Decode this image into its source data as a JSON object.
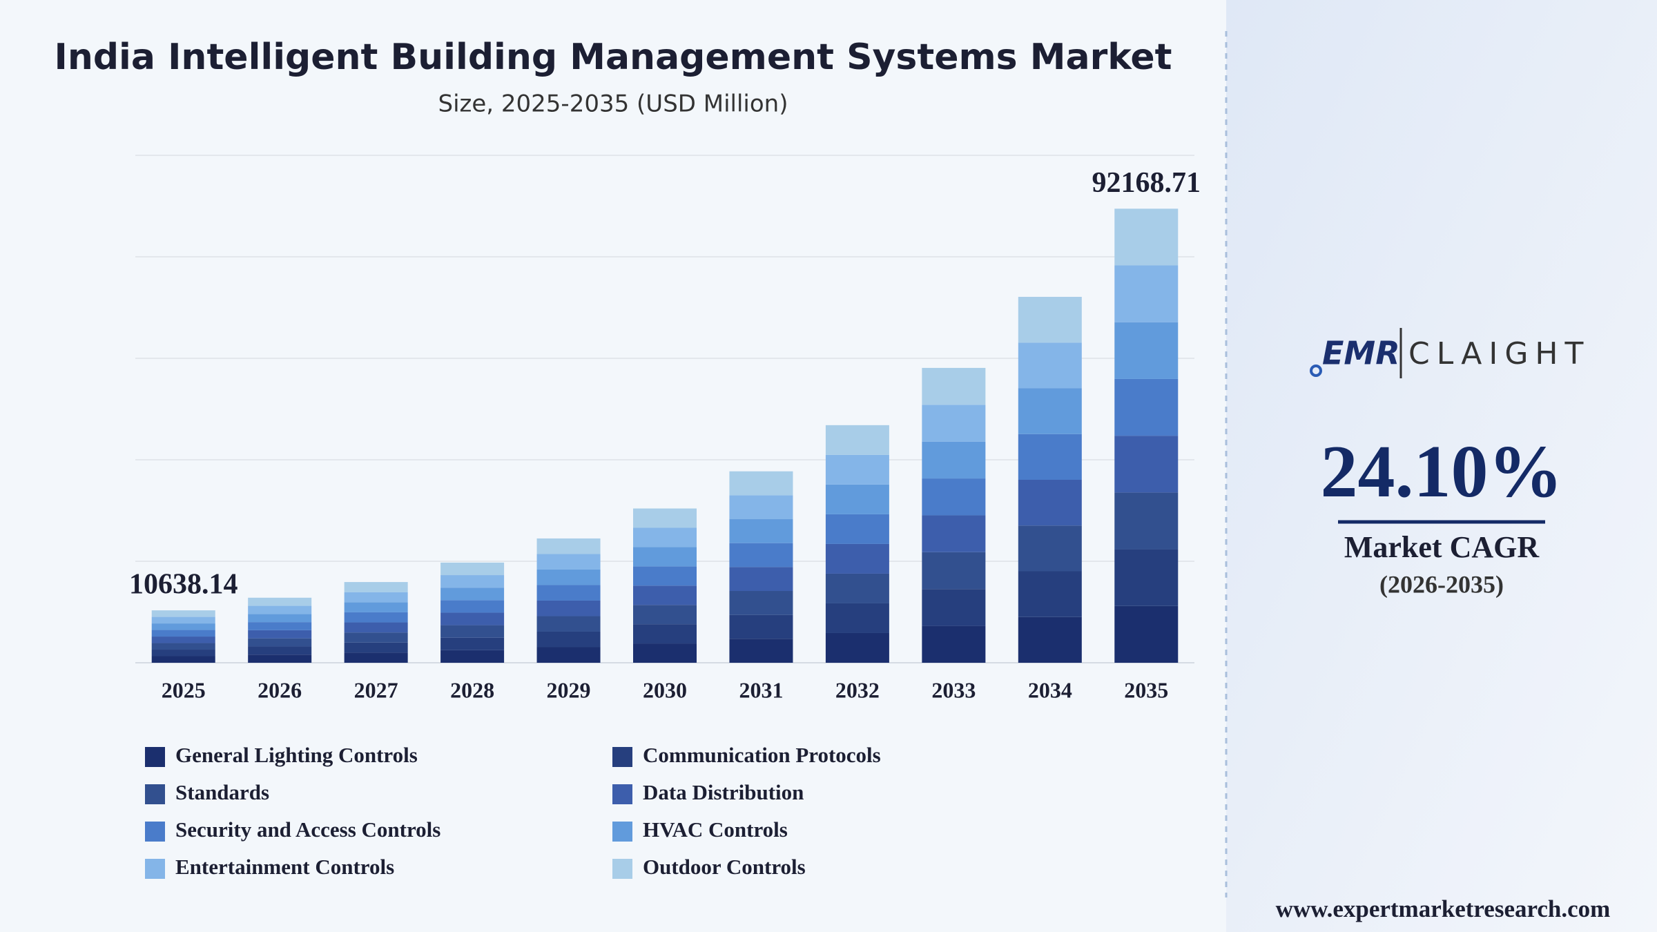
{
  "chart_data": {
    "type": "stacked_bar",
    "title": "India Intelligent Building Management Systems Market",
    "subtitle": "Size, 2025-2035 (USD Million)",
    "categories": [
      "2025",
      "2026",
      "2027",
      "2028",
      "2029",
      "2030",
      "2031",
      "2032",
      "2033",
      "2034",
      "2035"
    ],
    "series": [
      {
        "name": "General Lighting Controls",
        "color": "#1b2f6e",
        "values": [
          1329.8,
          1650.3,
          2048,
          2541.6,
          3154.1,
          3914.3,
          4857.6,
          6028.4,
          7481.3,
          9284.3,
          11521.1
        ]
      },
      {
        "name": "Communication Protocols",
        "color": "#263f7e",
        "values": [
          1329.8,
          1650.3,
          2048,
          2541.6,
          3154.1,
          3914.3,
          4857.6,
          6028.4,
          7481.3,
          9284.3,
          11521.1
        ]
      },
      {
        "name": "Standards",
        "color": "#32508f",
        "values": [
          1329.8,
          1650.3,
          2048,
          2541.6,
          3154.1,
          3914.3,
          4857.6,
          6028.4,
          7481.3,
          9284.3,
          11521.1
        ]
      },
      {
        "name": "Data Distribution",
        "color": "#3d5eac",
        "values": [
          1329.8,
          1650.3,
          2048,
          2541.6,
          3154.1,
          3914.3,
          4857.6,
          6028.4,
          7481.3,
          9284.3,
          11521.1
        ]
      },
      {
        "name": "Security and Access Controls",
        "color": "#4a7cca",
        "values": [
          1329.8,
          1650.3,
          2048,
          2541.6,
          3154.1,
          3914.3,
          4857.6,
          6028.4,
          7481.3,
          9284.3,
          11521.1
        ]
      },
      {
        "name": "HVAC Controls",
        "color": "#619bdc",
        "values": [
          1329.8,
          1650.3,
          2048,
          2541.6,
          3154.1,
          3914.3,
          4857.6,
          6028.4,
          7481.3,
          9284.3,
          11521.1
        ]
      },
      {
        "name": "Entertainment Controls",
        "color": "#84b5e8",
        "values": [
          1329.8,
          1650.3,
          2048,
          2541.6,
          3154.1,
          3914.3,
          4857.6,
          6028.4,
          7481.3,
          9284.3,
          11521.1
        ]
      },
      {
        "name": "Outdoor Controls",
        "color": "#a8cde8",
        "values": [
          1329.8,
          1650.3,
          2048,
          2541.6,
          3154.1,
          3914.3,
          4857.6,
          6028.4,
          7481.3,
          9284.3,
          11521.1
        ]
      }
    ],
    "annotations": [
      {
        "category": "2025",
        "text": "10638.14"
      },
      {
        "category": "2035",
        "text": "92168.71"
      }
    ],
    "ylim": [
      0,
      103000
    ],
    "grid": true
  },
  "logo": {
    "left": "EMR",
    "right": "CLAIGHT"
  },
  "cagr": {
    "value": "24.10%",
    "label": "Market CAGR",
    "period": "(2026-2035)"
  },
  "website": "www.expertmarketresearch.com"
}
